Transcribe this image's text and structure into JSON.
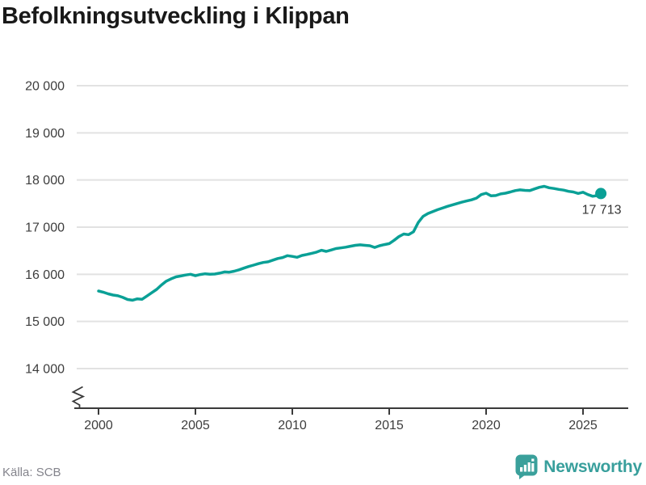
{
  "title": "Befolkningsutveckling i Klippan",
  "footer": {
    "source": "Källa: SCB",
    "brand": "Newsworthy"
  },
  "chart_data": {
    "type": "line",
    "title": "Befolkningsutveckling i Klippan",
    "series_name": "Befolkning",
    "x": [
      2000,
      2000.25,
      2000.5,
      2000.75,
      2001,
      2001.25,
      2001.5,
      2001.75,
      2002,
      2002.25,
      2002.5,
      2002.75,
      2003,
      2003.25,
      2003.5,
      2003.75,
      2004,
      2004.25,
      2004.5,
      2004.75,
      2005,
      2005.25,
      2005.5,
      2005.75,
      2006,
      2006.25,
      2006.5,
      2006.75,
      2007,
      2007.25,
      2007.5,
      2007.75,
      2008,
      2008.25,
      2008.5,
      2008.75,
      2009,
      2009.25,
      2009.5,
      2009.75,
      2010,
      2010.25,
      2010.5,
      2010.75,
      2011,
      2011.25,
      2011.5,
      2011.75,
      2012,
      2012.25,
      2012.5,
      2012.75,
      2013,
      2013.25,
      2013.5,
      2013.75,
      2014,
      2014.25,
      2014.5,
      2014.75,
      2015,
      2015.25,
      2015.5,
      2015.75,
      2016,
      2016.25,
      2016.5,
      2016.75,
      2017,
      2017.25,
      2017.5,
      2017.75,
      2018,
      2018.25,
      2018.5,
      2018.75,
      2019,
      2019.25,
      2019.5,
      2019.75,
      2020,
      2020.25,
      2020.5,
      2020.75,
      2021,
      2021.25,
      2021.5,
      2021.75,
      2022,
      2022.25,
      2022.5,
      2022.75,
      2023,
      2023.25,
      2023.5,
      2023.75,
      2024,
      2024.25,
      2024.5,
      2024.75,
      2025,
      2025.25,
      2025.5,
      2025.75,
      2025.92
    ],
    "values": [
      15645,
      15620,
      15585,
      15560,
      15545,
      15510,
      15465,
      15450,
      15480,
      15470,
      15540,
      15610,
      15680,
      15775,
      15855,
      15905,
      15945,
      15965,
      15985,
      16000,
      15970,
      15995,
      16010,
      16000,
      16005,
      16025,
      16050,
      16045,
      16065,
      16095,
      16130,
      16165,
      16195,
      16225,
      16250,
      16265,
      16300,
      16335,
      16355,
      16395,
      16380,
      16360,
      16400,
      16420,
      16445,
      16470,
      16510,
      16485,
      16515,
      16545,
      16560,
      16575,
      16595,
      16615,
      16625,
      16615,
      16605,
      16570,
      16605,
      16630,
      16650,
      16720,
      16800,
      16855,
      16840,
      16900,
      17100,
      17230,
      17290,
      17330,
      17370,
      17405,
      17440,
      17470,
      17500,
      17530,
      17555,
      17580,
      17615,
      17690,
      17720,
      17665,
      17670,
      17705,
      17720,
      17745,
      17775,
      17790,
      17780,
      17775,
      17810,
      17845,
      17865,
      17835,
      17820,
      17800,
      17785,
      17760,
      17745,
      17715,
      17740,
      17690,
      17655,
      17670,
      17713
    ],
    "end_value": 17713,
    "end_label": "17 713",
    "y_tick_values": [
      20000,
      19000,
      18000,
      17000,
      16000,
      15000,
      14000
    ],
    "y_tick_labels": [
      "20 000",
      "19 000",
      "18 000",
      "17 000",
      "16 000",
      "15 000",
      "14 000"
    ],
    "x_tick_values": [
      2000,
      2005,
      2010,
      2015,
      2020,
      2025
    ],
    "x_tick_labels": [
      "2000",
      "2005",
      "2010",
      "2015",
      "2020",
      "2025"
    ],
    "ylim": [
      14000,
      20000
    ],
    "axis_break": true,
    "grid": "horizontal",
    "legend": "none",
    "line_color": "#0aa096",
    "grid_color": "#e2e2e2",
    "axis_color": "#3a3a3a",
    "tick_label_color": "#3d3d3d",
    "end_label_color": "#333333"
  }
}
